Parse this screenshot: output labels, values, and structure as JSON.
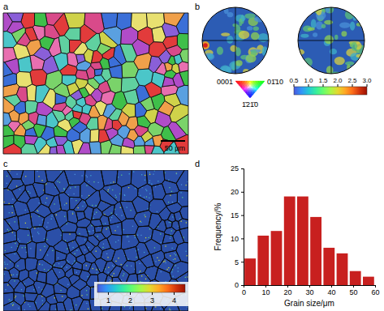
{
  "figure": {
    "a": {
      "label": "a",
      "scale_bar": "50 μm"
    },
    "b": {
      "label": "b",
      "ipf_key": {
        "corners": [
          "0001",
          "01̄10",
          "1̄21̄0"
        ]
      },
      "color_bar": {
        "range": [
          0.5,
          3.0
        ],
        "ticks": [
          0.5,
          {
            "value": 1,
            "label": "1.0"
          },
          1.5,
          {
            "value": 2,
            "label": "2.0"
          },
          2.5,
          {
            "value": 3,
            "label": "3.0"
          }
        ]
      }
    },
    "c": {
      "label": "c",
      "color_bar": {
        "range": [
          0.5,
          4.5
        ],
        "ticks": [
          1,
          2,
          3,
          4
        ]
      }
    },
    "d": {
      "label": "d"
    }
  },
  "chart_data": {
    "type": "histogram",
    "x_label": "Grain size/μm",
    "y_label": "Frequency/%",
    "bins": [
      0,
      6,
      12,
      18,
      24,
      30,
      36,
      42,
      48,
      54,
      60
    ],
    "values": [
      5.7,
      10.6,
      11.6,
      19,
      19,
      14.6,
      8,
      6.8,
      3,
      1.8
    ],
    "color": "#c8201f",
    "xlim": [
      0,
      60
    ],
    "xticks": [
      0,
      10,
      20,
      30,
      40,
      50,
      60
    ],
    "ylim": [
      0,
      25
    ],
    "yticks": [
      0,
      5,
      10,
      15,
      20,
      25
    ],
    "grid": false
  }
}
